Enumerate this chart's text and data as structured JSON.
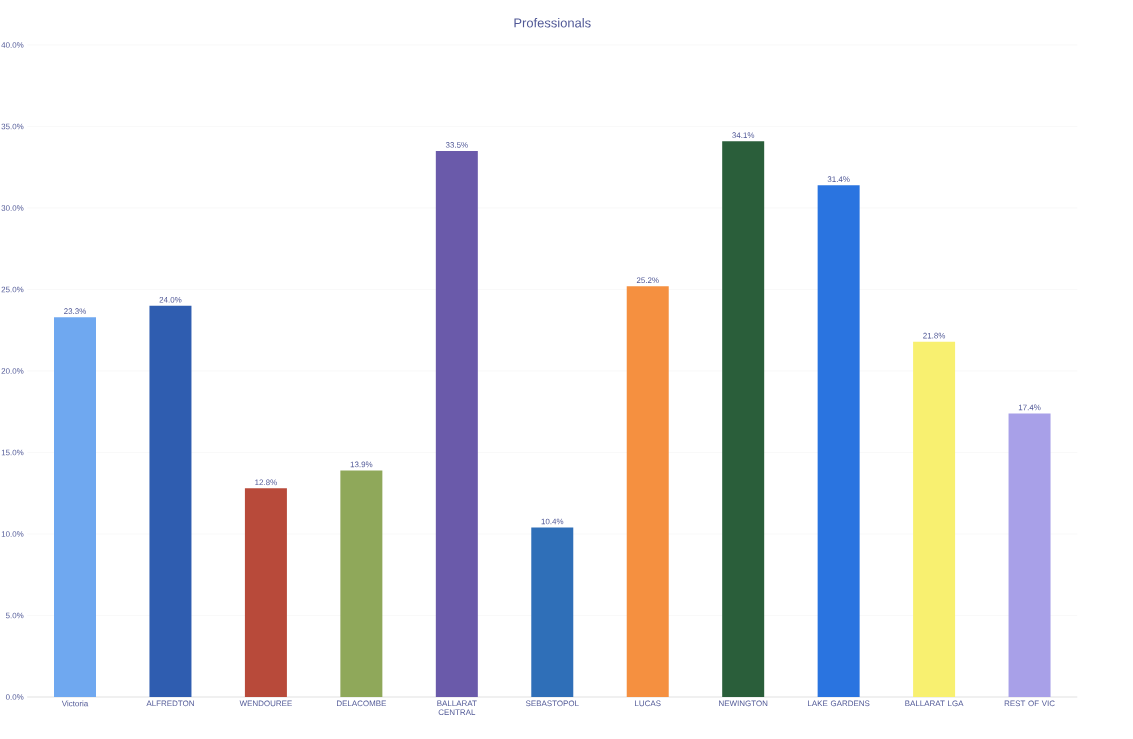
{
  "chart_data": {
    "type": "bar",
    "title": "Professionals",
    "categories": [
      "Victoria",
      "ALFREDTON",
      "WENDOUREE",
      "DELACOMBE",
      "BALLARAT CENTRAL",
      "SEBASTOPOL",
      "LUCAS",
      "NEWINGTON",
      "LAKE GARDENS",
      "BALLARAT LGA",
      "REST OF VIC"
    ],
    "values": [
      23.3,
      24.0,
      12.8,
      13.9,
      33.5,
      10.4,
      25.2,
      34.1,
      31.4,
      21.8,
      17.4
    ],
    "value_labels": [
      "23.3%",
      "24.0%",
      "12.8%",
      "13.9%",
      "33.5%",
      "10.4%",
      "25.2%",
      "34.1%",
      "31.4%",
      "21.8%",
      "17.4%"
    ],
    "colors": [
      "#6fa8f0",
      "#2f5db0",
      "#b84a3a",
      "#8fa85a",
      "#6a5aaa",
      "#2f6fb8",
      "#f59040",
      "#2a5e3a",
      "#2a74e0",
      "#f8f070",
      "#a8a0e8"
    ],
    "ylim": [
      0,
      40
    ],
    "yticks": [
      {
        "value": 0,
        "label": "0.0%"
      },
      {
        "value": 5,
        "label": "5.0%"
      },
      {
        "value": 10,
        "label": "10.0%"
      },
      {
        "value": 15,
        "label": "15.0%"
      },
      {
        "value": 20,
        "label": "20.0%"
      },
      {
        "value": 25,
        "label": "25.0%"
      },
      {
        "value": 30,
        "label": "30.0%"
      },
      {
        "value": 35,
        "label": "35.0%"
      },
      {
        "value": 40,
        "label": "40.0%"
      }
    ],
    "grid": "y"
  }
}
